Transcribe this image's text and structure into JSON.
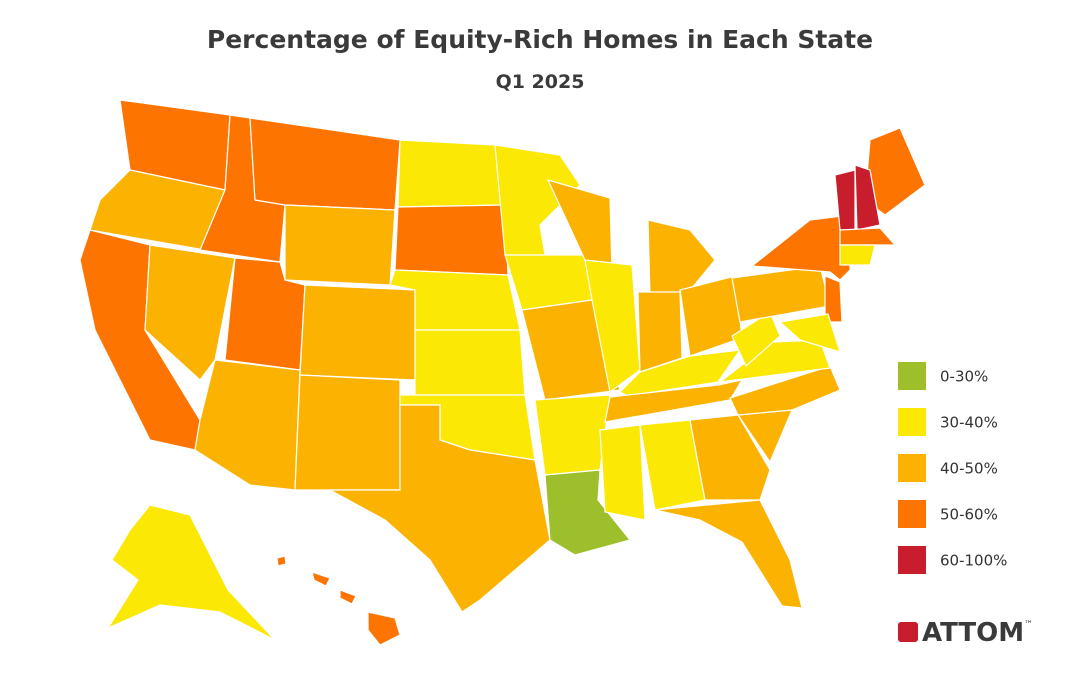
{
  "header": {
    "title": "Percentage of Equity-Rich Homes in Each State",
    "subtitle": "Q1 2025"
  },
  "legend": {
    "items": [
      {
        "label": "0-30%",
        "color": "#9cbf2b"
      },
      {
        "label": "30-40%",
        "color": "#fbe805"
      },
      {
        "label": "40-50%",
        "color": "#fcb200"
      },
      {
        "label": "50-60%",
        "color": "#fd7400"
      },
      {
        "label": "60-100%",
        "color": "#c81d2d"
      }
    ]
  },
  "logo": {
    "text": "ATTOM",
    "mark": "™"
  }
}
